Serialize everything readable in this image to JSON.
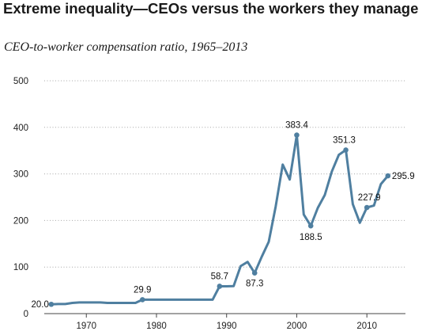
{
  "header": {
    "title": "Extreme inequality—CEOs versus the workers they manage",
    "subtitle": "CEO-to-worker compensation ratio, 1965–2013"
  },
  "chart_data": {
    "type": "line",
    "title": "Extreme inequality—CEOs versus the workers they manage",
    "subtitle": "CEO-to-worker compensation ratio, 1965–2013",
    "xlabel": "",
    "ylabel": "",
    "xlim": [
      1964,
      2015.5
    ],
    "ylim": [
      0,
      500
    ],
    "grid": true,
    "line_color": "#4f7fa0",
    "x_ticks": [
      1970,
      1980,
      1990,
      2000,
      2010
    ],
    "y_ticks": [
      0,
      100,
      200,
      300,
      400,
      500
    ],
    "series": [
      {
        "x": [
          1965,
          1966,
          1967,
          1968,
          1969,
          1970,
          1971,
          1972,
          1973,
          1974,
          1975,
          1976,
          1977,
          1978,
          1979,
          1980,
          1981,
          1982,
          1983,
          1984,
          1985,
          1986,
          1987,
          1988,
          1989,
          1990,
          1991,
          1992,
          1993,
          1994,
          1995,
          1996,
          1997,
          1998,
          1999,
          2000,
          2001,
          2002,
          2003,
          2004,
          2005,
          2006,
          2007,
          2008,
          2009,
          2010,
          2011,
          2012,
          2013
        ],
        "values": [
          20.0,
          20.5,
          20.5,
          23,
          24,
          24,
          24,
          24,
          23,
          23,
          23,
          23,
          23,
          29.9,
          29.9,
          29.9,
          29.9,
          29.9,
          29.9,
          29.9,
          29.9,
          29.9,
          29.9,
          29.9,
          58.7,
          58.7,
          59,
          102,
          111,
          87.3,
          122,
          154,
          230,
          320,
          288,
          383.4,
          213,
          188.5,
          227,
          255,
          305,
          341,
          351.3,
          235,
          195,
          227.9,
          232,
          278,
          295.9
        ]
      }
    ],
    "annotations": [
      {
        "x": 1965,
        "y": 20.0,
        "text": "20.0"
      },
      {
        "x": 1978,
        "y": 29.9,
        "text": "29.9"
      },
      {
        "x": 1989,
        "y": 58.7,
        "text": "58.7"
      },
      {
        "x": 1994,
        "y": 87.3,
        "text": "87.3"
      },
      {
        "x": 2000,
        "y": 383.4,
        "text": "383.4"
      },
      {
        "x": 2002,
        "y": 188.5,
        "text": "188.5"
      },
      {
        "x": 2007,
        "y": 351.3,
        "text": "351.3"
      },
      {
        "x": 2010,
        "y": 227.9,
        "text": "227.9"
      },
      {
        "x": 2013,
        "y": 295.9,
        "text": "295.9"
      }
    ]
  }
}
